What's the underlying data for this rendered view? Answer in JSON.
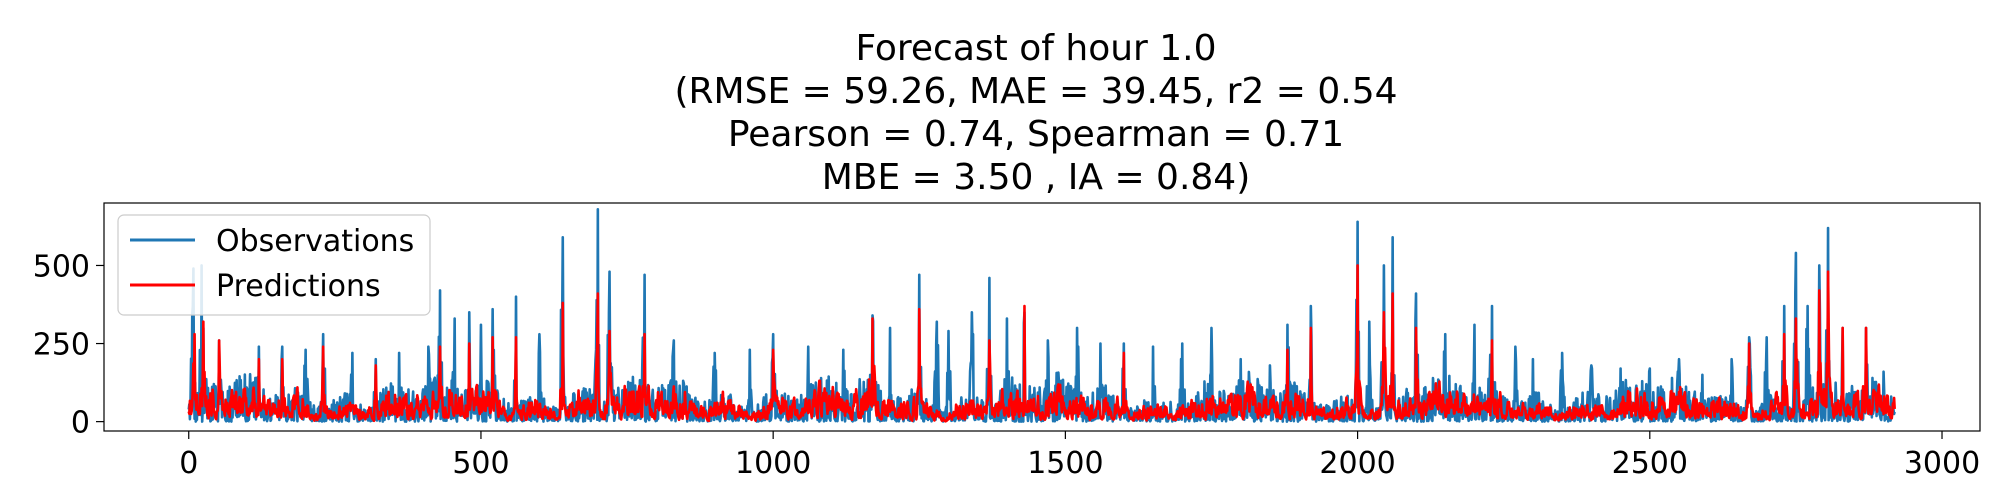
{
  "chart_data": {
    "type": "line",
    "title_lines": [
      "Forecast of hour 1.0",
      "(RMSE = 59.26, MAE = 39.45, r2 = 0.54",
      "Pearson = 0.74, Spearman = 0.71",
      "MBE = 3.50 , IA = 0.84)"
    ],
    "xlabel": "",
    "ylabel": "",
    "xlim": [
      -145,
      3065
    ],
    "ylim": [
      -30,
      700
    ],
    "xticks": [
      0,
      500,
      1000,
      1500,
      2000,
      2500,
      3000
    ],
    "xtick_labels": [
      "0",
      "500",
      "1000",
      "1500",
      "2000",
      "2500",
      "3000"
    ],
    "yticks": [
      0,
      250,
      500
    ],
    "ytick_labels": [
      "0",
      "250",
      "500"
    ],
    "n_points": 2920,
    "legend_position": "upper left",
    "series": [
      {
        "name": "Observations",
        "color": "#1f77b4",
        "peaks": [
          [
            8,
            490
          ],
          [
            22,
            500
          ],
          [
            52,
            260
          ],
          [
            120,
            240
          ],
          [
            160,
            240
          ],
          [
            200,
            230
          ],
          [
            230,
            280
          ],
          [
            280,
            220
          ],
          [
            320,
            200
          ],
          [
            360,
            220
          ],
          [
            410,
            240
          ],
          [
            430,
            420
          ],
          [
            455,
            330
          ],
          [
            480,
            350
          ],
          [
            500,
            310
          ],
          [
            520,
            360
          ],
          [
            560,
            400
          ],
          [
            600,
            280
          ],
          [
            640,
            590
          ],
          [
            700,
            680
          ],
          [
            720,
            480
          ],
          [
            780,
            470
          ],
          [
            830,
            260
          ],
          [
            900,
            220
          ],
          [
            960,
            230
          ],
          [
            1000,
            280
          ],
          [
            1060,
            240
          ],
          [
            1120,
            230
          ],
          [
            1170,
            340
          ],
          [
            1200,
            300
          ],
          [
            1250,
            470
          ],
          [
            1280,
            320
          ],
          [
            1300,
            290
          ],
          [
            1340,
            350
          ],
          [
            1370,
            460
          ],
          [
            1400,
            330
          ],
          [
            1430,
            350
          ],
          [
            1470,
            260
          ],
          [
            1520,
            300
          ],
          [
            1560,
            250
          ],
          [
            1600,
            250
          ],
          [
            1650,
            240
          ],
          [
            1700,
            250
          ],
          [
            1750,
            300
          ],
          [
            1800,
            200
          ],
          [
            1850,
            180
          ],
          [
            1880,
            310
          ],
          [
            1920,
            370
          ],
          [
            2000,
            640
          ],
          [
            2020,
            320
          ],
          [
            2045,
            500
          ],
          [
            2060,
            590
          ],
          [
            2100,
            410
          ],
          [
            2150,
            280
          ],
          [
            2200,
            310
          ],
          [
            2230,
            370
          ],
          [
            2270,
            240
          ],
          [
            2300,
            200
          ],
          [
            2350,
            220
          ],
          [
            2400,
            180
          ],
          [
            2450,
            170
          ],
          [
            2500,
            170
          ],
          [
            2550,
            200
          ],
          [
            2590,
            150
          ],
          [
            2640,
            200
          ],
          [
            2670,
            270
          ],
          [
            2700,
            270
          ],
          [
            2730,
            370
          ],
          [
            2750,
            540
          ],
          [
            2770,
            370
          ],
          [
            2790,
            500
          ],
          [
            2805,
            620
          ],
          [
            2830,
            300
          ],
          [
            2870,
            300
          ],
          [
            2900,
            160
          ]
        ]
      },
      {
        "name": "Predictions",
        "color": "#ff0000",
        "peaks": [
          [
            10,
            280
          ],
          [
            25,
            320
          ],
          [
            52,
            260
          ],
          [
            120,
            200
          ],
          [
            160,
            200
          ],
          [
            230,
            240
          ],
          [
            320,
            180
          ],
          [
            430,
            240
          ],
          [
            480,
            250
          ],
          [
            520,
            270
          ],
          [
            560,
            270
          ],
          [
            640,
            380
          ],
          [
            700,
            410
          ],
          [
            720,
            290
          ],
          [
            780,
            280
          ],
          [
            1000,
            230
          ],
          [
            1170,
            330
          ],
          [
            1250,
            360
          ],
          [
            1370,
            260
          ],
          [
            1430,
            370
          ],
          [
            1600,
            220
          ],
          [
            1880,
            230
          ],
          [
            1920,
            300
          ],
          [
            2000,
            500
          ],
          [
            2045,
            350
          ],
          [
            2060,
            410
          ],
          [
            2100,
            300
          ],
          [
            2230,
            260
          ],
          [
            2670,
            250
          ],
          [
            2730,
            280
          ],
          [
            2750,
            330
          ],
          [
            2790,
            420
          ],
          [
            2805,
            480
          ],
          [
            2830,
            300
          ],
          [
            2870,
            300
          ]
        ]
      }
    ]
  }
}
